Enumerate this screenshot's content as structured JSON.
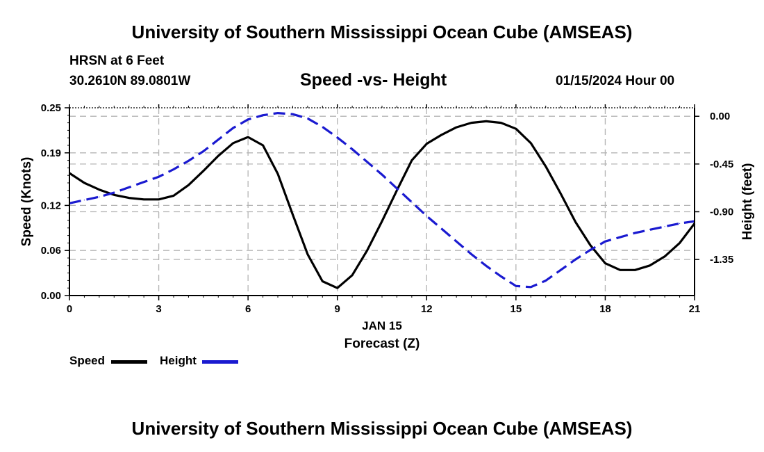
{
  "header": {
    "top_title": "University of Southern Mississippi Ocean Cube (AMSEAS)",
    "station": "HRSN at 6 Feet",
    "location": "30.2610N  89.0801W",
    "subtitle": "Speed -vs- Height",
    "datetime": "01/15/2024 Hour 00"
  },
  "footer": {
    "bottom_title": "University of Southern Mississippi Ocean Cube (AMSEAS)"
  },
  "legend": {
    "speed_label": "Speed",
    "height_label": "Height"
  },
  "colors": {
    "speed": "#000000",
    "height": "#1a1ad0",
    "grid": "#b4b4b4"
  },
  "chart_data": {
    "type": "line",
    "title": "Speed -vs- Height",
    "xlabel": "Forecast (Z)",
    "xlabel_date": "JAN 15",
    "ylabel_left": "Speed (Knots)",
    "ylabel_right": "Height (feet)",
    "xlim": [
      0,
      21
    ],
    "ylim_left": [
      0,
      0.25
    ],
    "ylim_right": [
      -1.69,
      0.08
    ],
    "x_ticks": [
      0,
      3,
      6,
      9,
      12,
      15,
      18,
      21
    ],
    "x_tick_labels": [
      "0",
      "3",
      "6",
      "9",
      "12",
      "15",
      "18",
      "21"
    ],
    "y_left_ticks": [
      0.0,
      0.06,
      0.12,
      0.19,
      0.25
    ],
    "y_left_tick_labels": [
      "0.00",
      "0.06",
      "0.12",
      "0.19",
      "0.25"
    ],
    "y_right_ticks": [
      0.0,
      -0.45,
      -0.9,
      -1.35
    ],
    "y_right_tick_labels": [
      "0.00",
      "-0.45",
      "-0.90",
      "-1.35"
    ],
    "series": [
      {
        "name": "Speed",
        "axis": "left",
        "style": "solid",
        "x": [
          0,
          0.5,
          1,
          1.5,
          2,
          2.5,
          3,
          3.5,
          4,
          4.5,
          5,
          5.5,
          6,
          6.5,
          7,
          7.5,
          8,
          8.5,
          9,
          9.5,
          10,
          10.5,
          11,
          11.5,
          12,
          12.5,
          13,
          13.5,
          14,
          14.5,
          15,
          15.5,
          16,
          16.5,
          17,
          17.5,
          18,
          18.5,
          19,
          19.5,
          20,
          20.5,
          21
        ],
        "values": [
          0.163,
          0.15,
          0.141,
          0.134,
          0.13,
          0.128,
          0.128,
          0.133,
          0.147,
          0.166,
          0.186,
          0.203,
          0.211,
          0.2,
          0.162,
          0.108,
          0.055,
          0.019,
          0.01,
          0.027,
          0.06,
          0.099,
          0.14,
          0.18,
          0.202,
          0.214,
          0.224,
          0.23,
          0.232,
          0.23,
          0.222,
          0.203,
          0.172,
          0.136,
          0.098,
          0.067,
          0.043,
          0.034,
          0.034,
          0.04,
          0.052,
          0.07,
          0.096
        ]
      },
      {
        "name": "Height",
        "axis": "right",
        "style": "dashed",
        "x": [
          0,
          0.5,
          1,
          1.5,
          2,
          2.5,
          3,
          3.5,
          4,
          4.5,
          5,
          5.5,
          6,
          6.5,
          7,
          7.5,
          8,
          8.5,
          9,
          9.5,
          10,
          10.5,
          11,
          11.5,
          12,
          12.5,
          13,
          13.5,
          14,
          14.5,
          15,
          15.5,
          16,
          16.5,
          17,
          17.5,
          18,
          18.5,
          19,
          19.5,
          20,
          20.5,
          21
        ],
        "values": [
          -0.82,
          -0.79,
          -0.76,
          -0.72,
          -0.67,
          -0.62,
          -0.57,
          -0.5,
          -0.42,
          -0.33,
          -0.22,
          -0.11,
          -0.03,
          0.01,
          0.03,
          0.02,
          -0.02,
          -0.1,
          -0.2,
          -0.31,
          -0.43,
          -0.55,
          -0.68,
          -0.81,
          -0.94,
          -1.06,
          -1.18,
          -1.3,
          -1.41,
          -1.51,
          -1.6,
          -1.61,
          -1.55,
          -1.45,
          -1.35,
          -1.26,
          -1.18,
          -1.14,
          -1.1,
          -1.07,
          -1.04,
          -1.01,
          -0.99
        ]
      }
    ]
  }
}
